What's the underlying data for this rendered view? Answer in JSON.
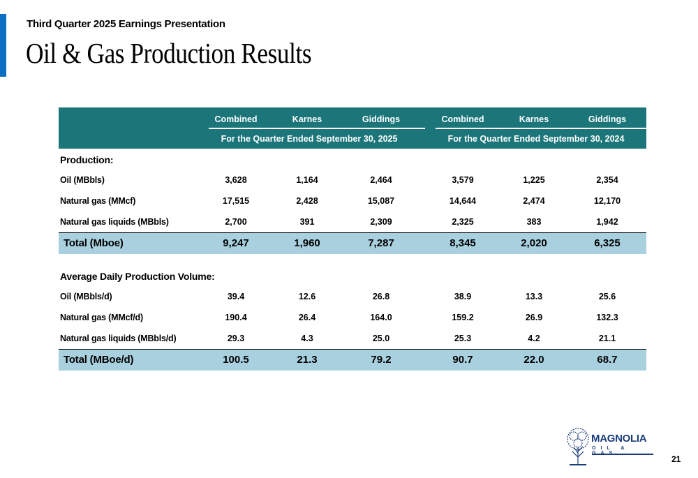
{
  "header": {
    "subtitle": "Third Quarter 2025 Earnings Presentation",
    "title": "Oil & Gas Production Results"
  },
  "table": {
    "columns": [
      "Combined",
      "Karnes",
      "Giddings",
      "Combined",
      "Karnes",
      "Giddings"
    ],
    "periods": [
      "For the Quarter Ended September 30, 2025",
      "For the Quarter Ended September 30, 2024"
    ],
    "production": {
      "section_label": "Production:",
      "rows": [
        {
          "label": "Oil (MBbls)",
          "values": [
            "3,628",
            "1,164",
            "2,464",
            "3,579",
            "1,225",
            "2,354"
          ]
        },
        {
          "label": "Natural gas (MMcf)",
          "values": [
            "17,515",
            "2,428",
            "15,087",
            "14,644",
            "2,474",
            "12,170"
          ]
        },
        {
          "label": "Natural gas liquids (MBbls)",
          "values": [
            "2,700",
            "391",
            "2,309",
            "2,325",
            "383",
            "1,942"
          ]
        }
      ],
      "total": {
        "label": "Total (Mboe)",
        "values": [
          "9,247",
          "1,960",
          "7,287",
          "8,345",
          "2,020",
          "6,325"
        ]
      }
    },
    "daily": {
      "section_label": "Average Daily Production Volume:",
      "rows": [
        {
          "label": "Oil (MBbls/d)",
          "values": [
            "39.4",
            "12.6",
            "26.8",
            "38.9",
            "13.3",
            "25.6"
          ]
        },
        {
          "label": "Natural gas (MMcf/d)",
          "values": [
            "190.4",
            "26.4",
            "164.0",
            "159.2",
            "26.9",
            "132.3"
          ]
        },
        {
          "label": "Natural gas liquids (MBbls/d)",
          "values": [
            "29.3",
            "4.3",
            "25.0",
            "25.3",
            "4.2",
            "21.1"
          ]
        }
      ],
      "total": {
        "label": "Total (MBoe/d)",
        "values": [
          "100.5",
          "21.3",
          "79.2",
          "90.7",
          "22.0",
          "68.7"
        ]
      }
    }
  },
  "logo": {
    "name": "MAGNOLIA",
    "sub": "OIL & GAS"
  },
  "page_number": "21",
  "colors": {
    "accent": "#0a6fc2",
    "header_bg": "#1b7579",
    "total_bg": "#a8d0df",
    "logo": "#1a3d7a"
  }
}
